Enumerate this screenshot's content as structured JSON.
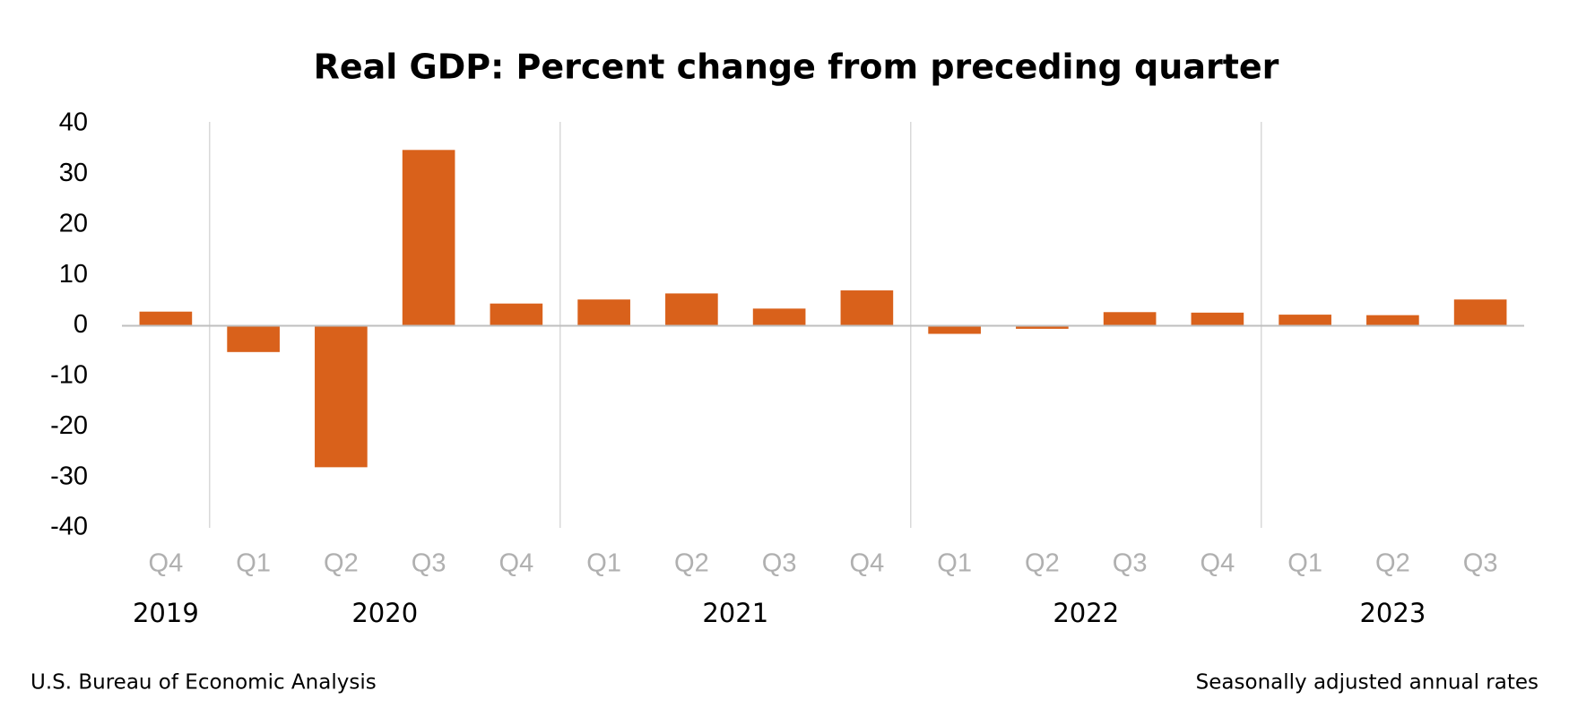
{
  "chart_data": {
    "type": "bar",
    "title": "Real GDP:  Percent change from preceding quarter",
    "categories": [
      "Q4",
      "Q1",
      "Q2",
      "Q3",
      "Q4",
      "Q1",
      "Q2",
      "Q3",
      "Q4",
      "Q1",
      "Q2",
      "Q3",
      "Q4",
      "Q1",
      "Q2",
      "Q3"
    ],
    "years": [
      {
        "label": "2019",
        "quarters": 1
      },
      {
        "label": "2020",
        "quarters": 4
      },
      {
        "label": "2021",
        "quarters": 4
      },
      {
        "label": "2022",
        "quarters": 4
      },
      {
        "label": "2023",
        "quarters": 3
      }
    ],
    "values": [
      2.8,
      -5.2,
      -28,
      34.8,
      4.4,
      5.2,
      6.4,
      3.4,
      7.0,
      -1.6,
      -0.6,
      2.7,
      2.6,
      2.2,
      2.1,
      5.2
    ],
    "color": "#d9611b",
    "ylim": [
      -40,
      40
    ],
    "yticks": [
      -40,
      -30,
      -20,
      -10,
      0,
      10,
      20,
      30,
      40
    ],
    "grid": false,
    "source": "U.S. Bureau of Economic Analysis",
    "note": "Seasonally adjusted annual rates"
  }
}
